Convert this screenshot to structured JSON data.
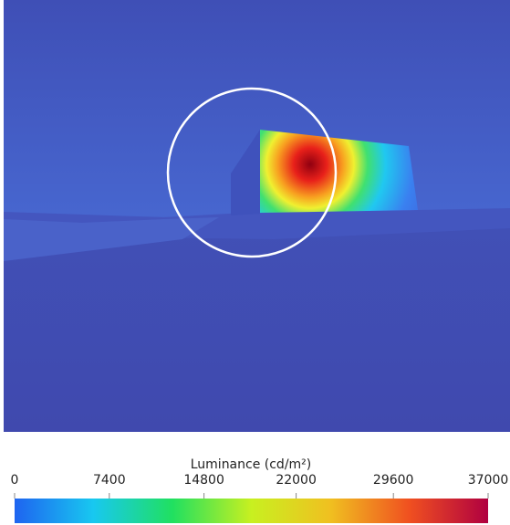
{
  "chart_data": {
    "type": "colorbar",
    "title": "Luminance (cd/m²)",
    "zlim": [
      0,
      37000
    ],
    "zticks": [
      0,
      7400,
      14800,
      22000,
      29600,
      37000
    ],
    "colormap": [
      "#1e64f0",
      "#18c8f0",
      "#20e060",
      "#c8f020",
      "#f0c020",
      "#f05020",
      "#b00040"
    ]
  }
}
